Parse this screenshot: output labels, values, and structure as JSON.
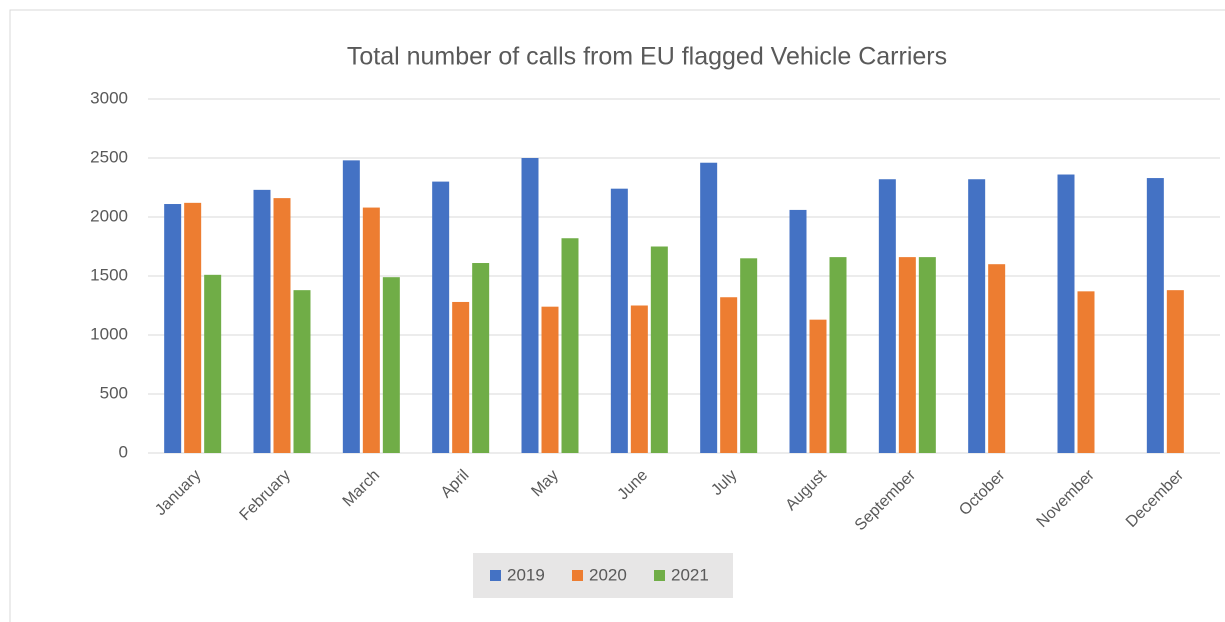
{
  "chart_data": {
    "type": "bar",
    "title": "Total number of calls from EU flagged Vehicle Carriers",
    "categories": [
      "January",
      "February",
      "March",
      "April",
      "May",
      "June",
      "July",
      "August",
      "September",
      "October",
      "November",
      "December"
    ],
    "series": [
      {
        "name": "2019",
        "color": "#4472c4",
        "values": [
          2110,
          2230,
          2480,
          2300,
          2500,
          2240,
          2460,
          2060,
          2320,
          2320,
          2360,
          2330
        ]
      },
      {
        "name": "2020",
        "color": "#ed7d31",
        "values": [
          2120,
          2160,
          2080,
          1280,
          1240,
          1250,
          1320,
          1130,
          1660,
          1600,
          1370,
          1380
        ]
      },
      {
        "name": "2021",
        "color": "#70ad47",
        "values": [
          1510,
          1380,
          1490,
          1610,
          1820,
          1750,
          1650,
          1660,
          1660,
          null,
          null,
          null
        ]
      }
    ],
    "ylim": [
      0,
      3000
    ],
    "yticks": [
      0,
      500,
      1000,
      1500,
      2000,
      2500,
      3000
    ],
    "grid": true,
    "legend": "bottom"
  }
}
